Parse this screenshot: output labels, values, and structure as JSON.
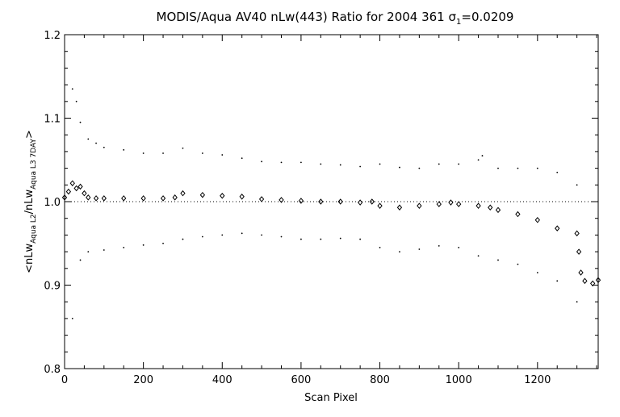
{
  "chart_data": {
    "type": "scatter",
    "title": {
      "prefix": "MODIS/Aqua AV40 nLw(443) Ratio for 2004 361 ",
      "sigma": "σ",
      "sigma_sub": "1",
      "suffix": "=0.0209"
    },
    "xlabel": "Scan Pixel",
    "ylabel": {
      "prefix": "<nLw",
      "sub1": "Aqua L2",
      "mid": "/nLw",
      "sub2": "Aqua L3 7DAY",
      "suffix": ">"
    },
    "xlim": [
      0,
      1354
    ],
    "ylim": [
      0.8,
      1.2
    ],
    "xticks": [
      0,
      200,
      400,
      600,
      800,
      1000,
      1200
    ],
    "xtick_labels": [
      "0",
      "200",
      "400",
      "600",
      "800",
      "1000",
      "1200"
    ],
    "yticks": [
      0.8,
      0.9,
      1.0,
      1.1,
      1.2
    ],
    "ytick_labels": [
      "0.8",
      "0.9",
      "1.0",
      "1.1",
      "1.2"
    ],
    "reference_line": 1.0,
    "grid": false,
    "series": [
      {
        "role": "mean",
        "marker": "diamond",
        "x": [
          0,
          10,
          20,
          30,
          40,
          50,
          60,
          80,
          100,
          150,
          200,
          250,
          280,
          300,
          350,
          400,
          450,
          500,
          550,
          600,
          650,
          700,
          750,
          780,
          800,
          850,
          900,
          950,
          980,
          1000,
          1050,
          1080,
          1100,
          1150,
          1200,
          1250,
          1300,
          1305,
          1310,
          1320,
          1340,
          1354
        ],
        "y": [
          1.005,
          1.012,
          1.022,
          1.016,
          1.018,
          1.01,
          1.005,
          1.004,
          1.004,
          1.004,
          1.004,
          1.004,
          1.005,
          1.01,
          1.008,
          1.007,
          1.006,
          1.003,
          1.002,
          1.001,
          1.0,
          1.0,
          0.999,
          1.0,
          0.995,
          0.993,
          0.995,
          0.997,
          0.999,
          0.997,
          0.995,
          0.993,
          0.99,
          0.985,
          0.978,
          0.968,
          0.962,
          0.94,
          0.915,
          0.905,
          0.902,
          0.906
        ]
      },
      {
        "role": "upper",
        "marker": "dot",
        "x": [
          20,
          30,
          40,
          60,
          80,
          100,
          150,
          200,
          250,
          300,
          350,
          400,
          450,
          500,
          550,
          600,
          650,
          700,
          750,
          800,
          850,
          900,
          950,
          1000,
          1050,
          1060,
          1100,
          1150,
          1200,
          1250,
          1300
        ],
        "y": [
          1.135,
          1.12,
          1.095,
          1.075,
          1.07,
          1.065,
          1.062,
          1.058,
          1.058,
          1.064,
          1.058,
          1.056,
          1.052,
          1.048,
          1.047,
          1.047,
          1.045,
          1.044,
          1.042,
          1.045,
          1.041,
          1.04,
          1.045,
          1.045,
          1.05,
          1.055,
          1.04,
          1.04,
          1.04,
          1.035,
          1.02
        ]
      },
      {
        "role": "lower",
        "marker": "dot",
        "x": [
          20,
          40,
          60,
          100,
          150,
          200,
          250,
          300,
          350,
          400,
          450,
          500,
          550,
          600,
          650,
          700,
          750,
          800,
          850,
          900,
          950,
          1000,
          1050,
          1100,
          1150,
          1200,
          1250,
          1300
        ],
        "y": [
          0.86,
          0.93,
          0.94,
          0.942,
          0.945,
          0.948,
          0.95,
          0.955,
          0.958,
          0.96,
          0.962,
          0.96,
          0.958,
          0.955,
          0.955,
          0.956,
          0.955,
          0.945,
          0.94,
          0.943,
          0.947,
          0.945,
          0.935,
          0.93,
          0.925,
          0.915,
          0.905,
          0.88
        ]
      }
    ]
  }
}
